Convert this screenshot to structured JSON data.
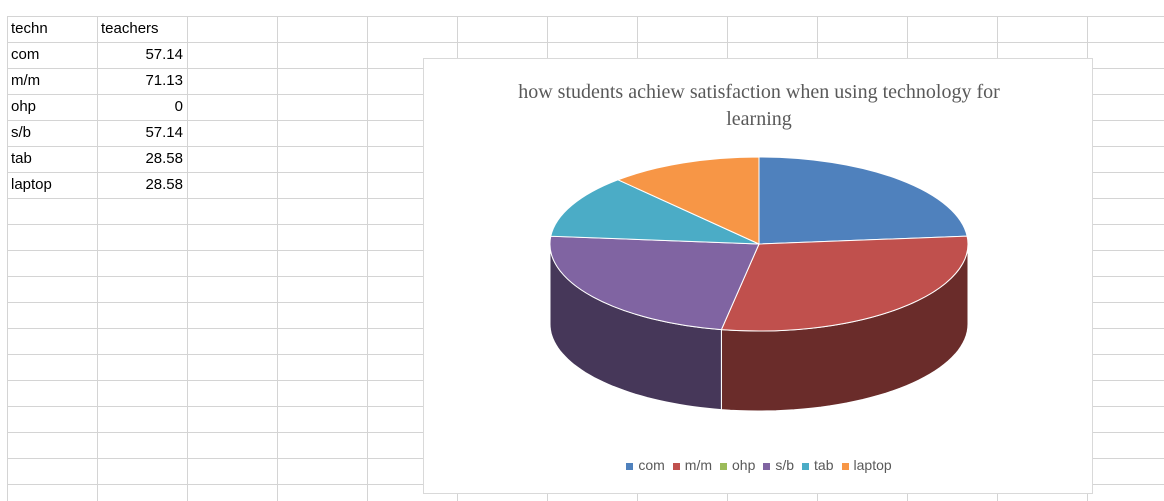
{
  "table": {
    "headers": [
      "techn",
      "teachers"
    ]
  },
  "chart_data": {
    "type": "pie",
    "title": "how students achiew satisfaction when using technology for learning",
    "categories": [
      "com",
      "m/m",
      "ohp",
      "s/b",
      "tab",
      "laptop"
    ],
    "values": [
      57.14,
      71.13,
      0,
      57.14,
      28.58,
      28.58
    ],
    "colors": [
      "#4f81bd",
      "#c0504d",
      "#9bbb59",
      "#8064a2",
      "#4bacc6",
      "#f79646"
    ],
    "legend": "bottom"
  }
}
